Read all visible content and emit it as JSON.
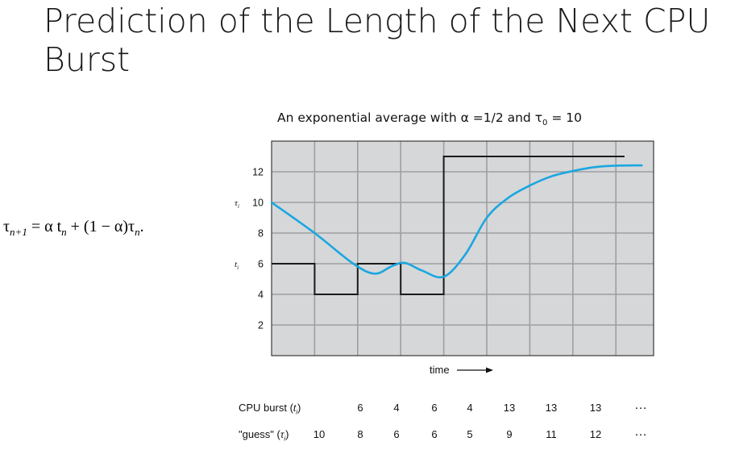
{
  "slide": {
    "title": "Prediction of the Length of the Next CPU Burst"
  },
  "chart_data": {
    "type": "line",
    "caption": "An exponential average with α =1/2 and τ0 = 10",
    "caption_parts": {
      "pre": "An exponential average with α =1/2 and τ",
      "sub": "0",
      "post": " = 10"
    },
    "formula": {
      "lhs": "τ",
      "lhs_sub": "n+1",
      "rhs": " = α t",
      "rhs_sub1": "n",
      "rhs2": " + (1 − α)τ",
      "rhs_sub2": "n",
      "end": "."
    },
    "xlabel": "time",
    "ytick_labels": [
      2,
      4,
      6,
      8,
      10,
      12
    ],
    "ylim": [
      0,
      14
    ],
    "xlim": [
      0,
      9
    ],
    "grid": true,
    "y_markers": {
      "tau": {
        "label": "τ",
        "sub": "i",
        "at": 10
      },
      "t": {
        "label": "t",
        "sub": "i",
        "at": 6
      }
    },
    "series": [
      {
        "name": "CPU burst",
        "kind": "step",
        "color": "#1a1a1a",
        "segments": [
          {
            "x0": 0,
            "x1": 1,
            "y": 6
          },
          {
            "x0": 1,
            "x1": 2,
            "y": 4
          },
          {
            "x0": 2,
            "x1": 3,
            "y": 6
          },
          {
            "x0": 3,
            "x1": 4,
            "y": 4
          },
          {
            "x0": 4,
            "x1": 8.2,
            "y": 13
          }
        ]
      },
      {
        "name": "guess",
        "kind": "smooth",
        "color": "#1aa7e0",
        "points": [
          [
            0,
            10
          ],
          [
            1,
            8
          ],
          [
            1.9,
            6
          ],
          [
            2.4,
            5.35
          ],
          [
            2.8,
            5.85
          ],
          [
            3.1,
            6.05
          ],
          [
            3.5,
            5.55
          ],
          [
            4.0,
            5.15
          ],
          [
            4.5,
            6.6
          ],
          [
            5.0,
            9.0
          ],
          [
            5.5,
            10.3
          ],
          [
            6.0,
            11.1
          ],
          [
            6.5,
            11.7
          ],
          [
            7.0,
            12.05
          ],
          [
            7.5,
            12.3
          ],
          [
            8.0,
            12.4
          ],
          [
            8.6,
            12.42
          ]
        ]
      }
    ],
    "table": {
      "row_labels": {
        "burst": {
          "text": "CPU burst (",
          "var": "t",
          "sub": "i",
          "close": ")"
        },
        "guess": {
          "text": "\"guess\" (",
          "var": "τ",
          "sub": "i",
          "close": ")"
        }
      },
      "burst_values": [
        "6",
        "4",
        "6",
        "4",
        "13",
        "13",
        "13",
        "…"
      ],
      "guess_values": [
        "10",
        "8",
        "6",
        "6",
        "5",
        "9",
        "11",
        "12",
        "…"
      ]
    }
  }
}
